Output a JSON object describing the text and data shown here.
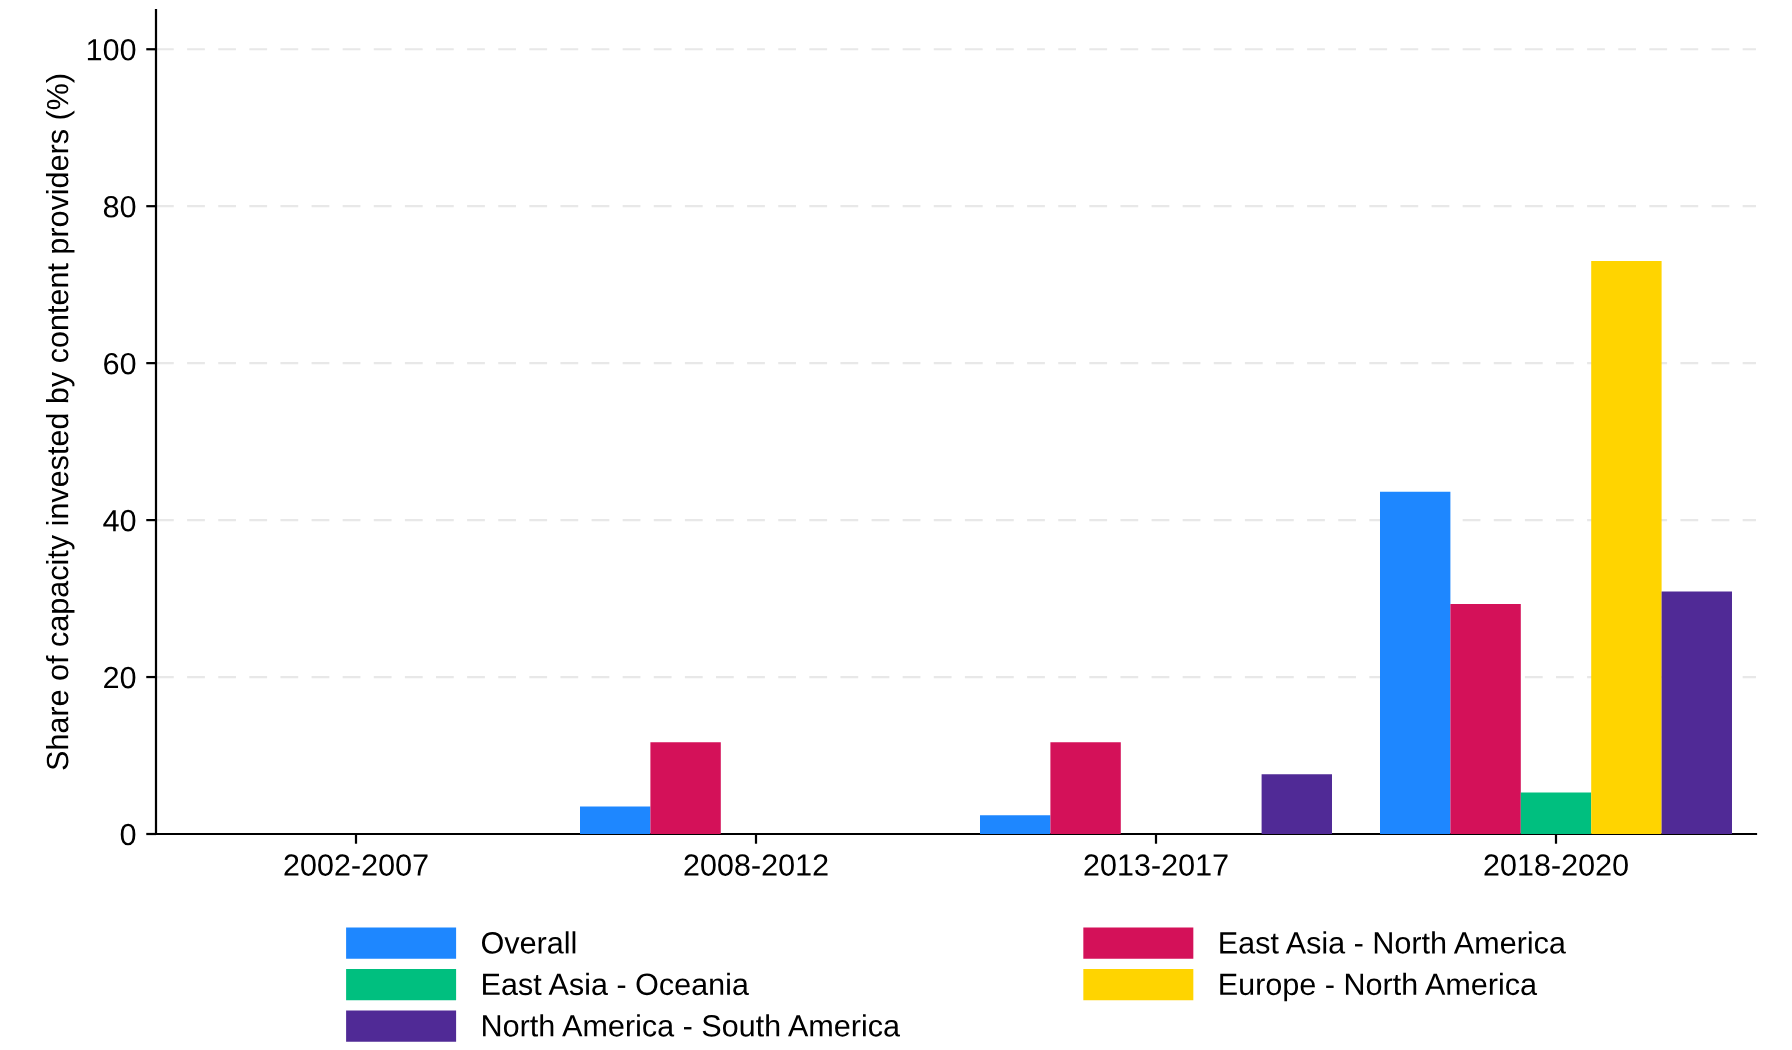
{
  "chart_data": {
    "type": "bar",
    "ylabel": "Share of capacity invested by content providers (%)",
    "categories": [
      "2002-2007",
      "2008-2012",
      "2013-2017",
      "2018-2020"
    ],
    "series": [
      {
        "name": "Overall",
        "color": "#1e87ff",
        "values": [
          0,
          3.5,
          2.4,
          43.6
        ]
      },
      {
        "name": "East Asia - North America",
        "color": "#d41159",
        "values": [
          0,
          11.7,
          11.7,
          29.3
        ]
      },
      {
        "name": "East Asia - Oceania",
        "color": "#00bf7f",
        "values": [
          0,
          0,
          0,
          5.3
        ]
      },
      {
        "name": "Europe - North America",
        "color": "#ffd400",
        "values": [
          0,
          0,
          0,
          73
        ]
      },
      {
        "name": "North America - South America",
        "color": "#502a96",
        "values": [
          0,
          0,
          7.6,
          30.9
        ]
      }
    ],
    "ylim": [
      0,
      105
    ],
    "yticks": [
      0,
      20,
      40,
      60,
      80,
      100
    ],
    "grid": "y",
    "legend": "bottom"
  }
}
